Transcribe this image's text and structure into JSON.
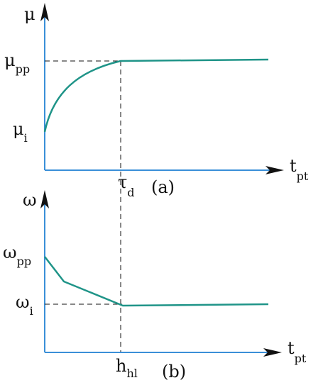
{
  "panels": [
    {
      "y_axis": {
        "symbol": "μ"
      },
      "levels": [
        {
          "symbol": "μ",
          "subscript": "pp"
        },
        {
          "symbol": "μ",
          "subscript": "i"
        }
      ],
      "x_axis": {
        "symbol": "t",
        "subscript": "pt"
      },
      "marker": {
        "symbol": "τ",
        "subscript": "d"
      },
      "label": "(a)"
    },
    {
      "y_axis": {
        "symbol": "ω"
      },
      "levels": [
        {
          "symbol": "ω",
          "subscript": "pp"
        },
        {
          "symbol": "ω",
          "subscript": "i"
        }
      ],
      "x_axis": {
        "symbol": "t",
        "subscript": "pt"
      },
      "marker": {
        "symbol": "h",
        "subscript": "hl"
      },
      "label": "(b)"
    }
  ]
}
